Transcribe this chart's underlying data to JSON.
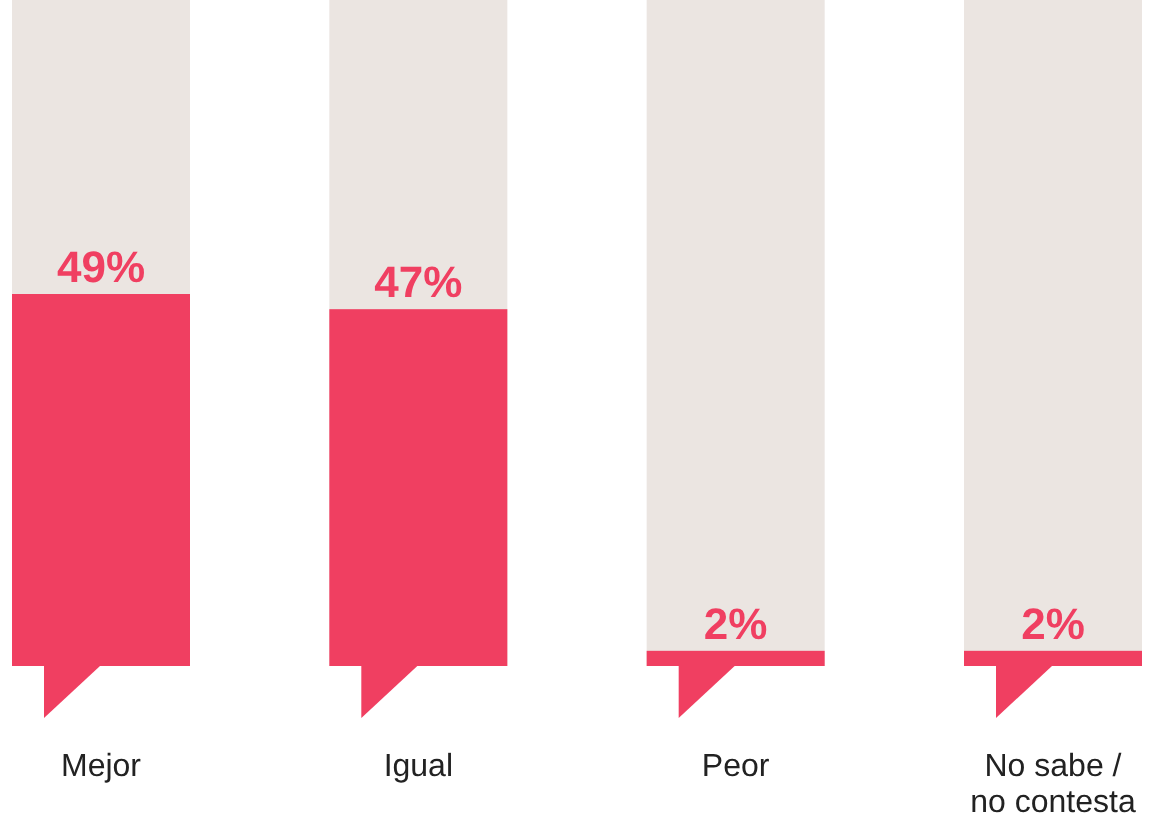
{
  "chart_data": {
    "type": "bar",
    "categories": [
      "Mejor",
      "Igual",
      "Peor",
      "No sabe / no contesta"
    ],
    "values": [
      49,
      47,
      2,
      2
    ],
    "value_labels": [
      "49%",
      "47%",
      "2%",
      "2%"
    ],
    "color": "#f03f61"
  }
}
